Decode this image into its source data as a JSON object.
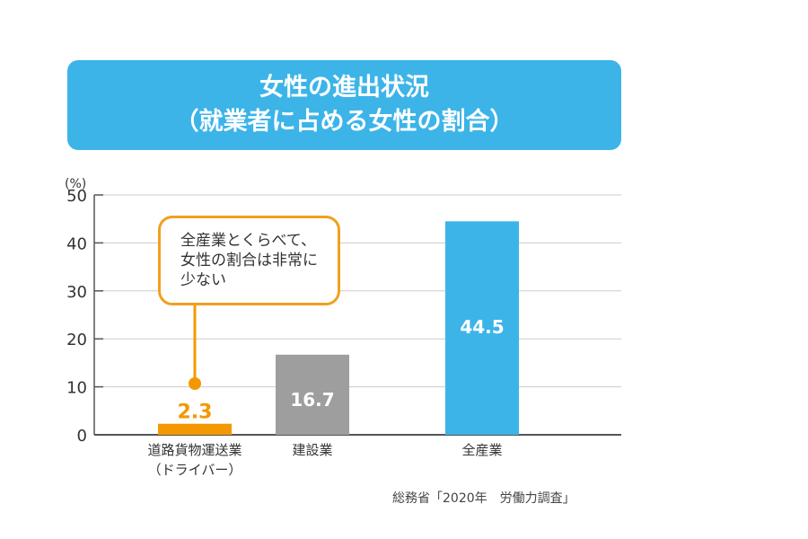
{
  "title": {
    "line1": "女性の進出状況",
    "line2": "（就業者に占める女性の割合）"
  },
  "callout": {
    "lines": [
      "全産業とくらべて、",
      "女性の割合は非常に",
      "少ない"
    ]
  },
  "source": "総務省「2020年　労働力調査」",
  "chart_data": {
    "type": "bar",
    "ylabel": "(%)",
    "ylim": [
      0,
      50
    ],
    "yticks": [
      0,
      10,
      20,
      30,
      40,
      50
    ],
    "grid": true,
    "categories": [
      [
        "道路貨物運送業",
        "（ドライバー）"
      ],
      [
        "建設業"
      ],
      [
        "全産業"
      ]
    ],
    "values": [
      2.3,
      16.7,
      44.5
    ],
    "data_labels": [
      "2.3",
      "16.7",
      "44.5"
    ],
    "colors": [
      "#f39800",
      "#9e9e9e",
      "#3cb4e8"
    ]
  }
}
